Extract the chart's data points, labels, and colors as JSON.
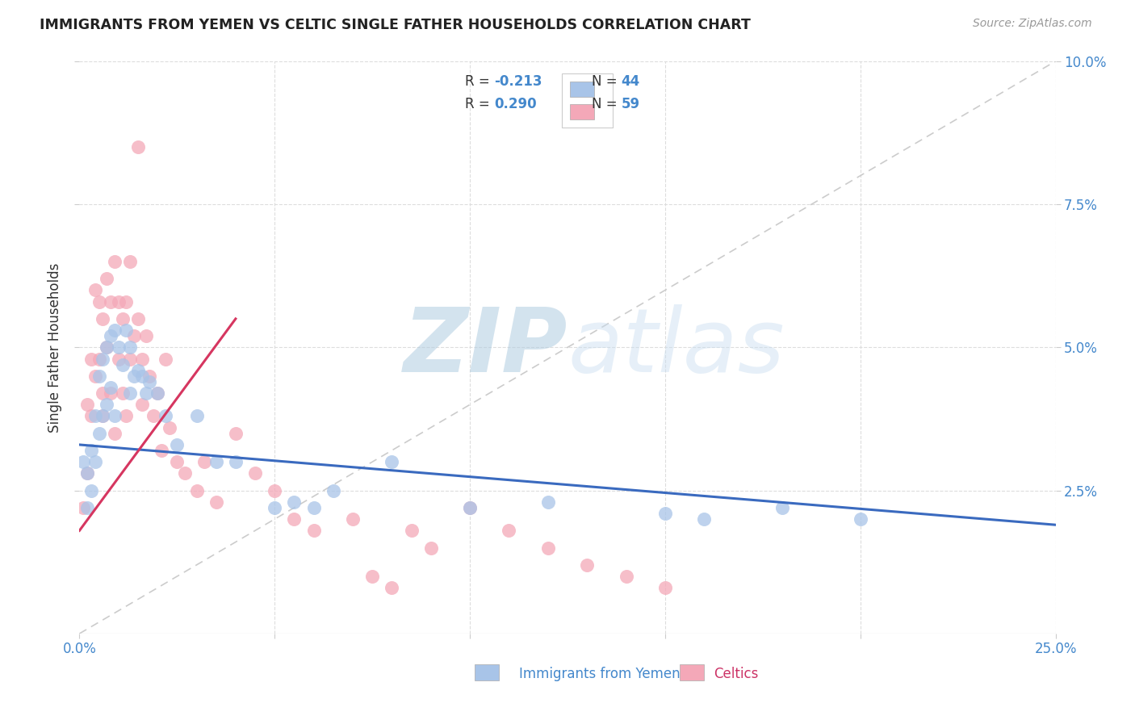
{
  "title": "IMMIGRANTS FROM YEMEN VS CELTIC SINGLE FATHER HOUSEHOLDS CORRELATION CHART",
  "source": "Source: ZipAtlas.com",
  "xlabel_blue": "Immigrants from Yemen",
  "xlabel_pink": "Celtics",
  "ylabel": "Single Father Households",
  "xlim": [
    0.0,
    0.25
  ],
  "ylim": [
    0.0,
    0.1
  ],
  "blue_color": "#a8c4e8",
  "pink_color": "#f4a8b8",
  "blue_line_color": "#3a6abf",
  "pink_line_color": "#d63660",
  "watermark_color": "#c5d8ec",
  "grid_color": "#dddddd",
  "title_color": "#222222",
  "label_color": "#333333",
  "tick_color": "#4488cc",
  "source_color": "#999999",
  "blue_x": [
    0.001,
    0.002,
    0.002,
    0.003,
    0.003,
    0.004,
    0.004,
    0.005,
    0.005,
    0.006,
    0.006,
    0.007,
    0.007,
    0.008,
    0.008,
    0.009,
    0.009,
    0.01,
    0.011,
    0.012,
    0.013,
    0.013,
    0.014,
    0.015,
    0.016,
    0.017,
    0.018,
    0.02,
    0.022,
    0.025,
    0.03,
    0.035,
    0.04,
    0.05,
    0.055,
    0.06,
    0.065,
    0.08,
    0.1,
    0.12,
    0.15,
    0.16,
    0.18,
    0.2
  ],
  "blue_y": [
    0.03,
    0.028,
    0.022,
    0.032,
    0.025,
    0.038,
    0.03,
    0.045,
    0.035,
    0.048,
    0.038,
    0.05,
    0.04,
    0.052,
    0.043,
    0.053,
    0.038,
    0.05,
    0.047,
    0.053,
    0.05,
    0.042,
    0.045,
    0.046,
    0.045,
    0.042,
    0.044,
    0.042,
    0.038,
    0.033,
    0.038,
    0.03,
    0.03,
    0.022,
    0.023,
    0.022,
    0.025,
    0.03,
    0.022,
    0.023,
    0.021,
    0.02,
    0.022,
    0.02
  ],
  "pink_x": [
    0.001,
    0.002,
    0.002,
    0.003,
    0.003,
    0.004,
    0.004,
    0.005,
    0.005,
    0.006,
    0.006,
    0.006,
    0.007,
    0.007,
    0.008,
    0.008,
    0.009,
    0.009,
    0.01,
    0.01,
    0.011,
    0.011,
    0.012,
    0.012,
    0.013,
    0.013,
    0.014,
    0.015,
    0.015,
    0.016,
    0.016,
    0.017,
    0.018,
    0.019,
    0.02,
    0.021,
    0.022,
    0.023,
    0.025,
    0.027,
    0.03,
    0.032,
    0.035,
    0.04,
    0.045,
    0.05,
    0.055,
    0.06,
    0.07,
    0.075,
    0.08,
    0.085,
    0.09,
    0.1,
    0.11,
    0.12,
    0.13,
    0.14,
    0.15
  ],
  "pink_y": [
    0.022,
    0.04,
    0.028,
    0.048,
    0.038,
    0.06,
    0.045,
    0.058,
    0.048,
    0.055,
    0.042,
    0.038,
    0.05,
    0.062,
    0.058,
    0.042,
    0.065,
    0.035,
    0.058,
    0.048,
    0.055,
    0.042,
    0.058,
    0.038,
    0.065,
    0.048,
    0.052,
    0.055,
    0.085,
    0.048,
    0.04,
    0.052,
    0.045,
    0.038,
    0.042,
    0.032,
    0.048,
    0.036,
    0.03,
    0.028,
    0.025,
    0.03,
    0.023,
    0.035,
    0.028,
    0.025,
    0.02,
    0.018,
    0.02,
    0.01,
    0.008,
    0.018,
    0.015,
    0.022,
    0.018,
    0.015,
    0.012,
    0.01,
    0.008
  ],
  "blue_line_x0": 0.0,
  "blue_line_x1": 0.25,
  "blue_line_y0": 0.033,
  "blue_line_y1": 0.019,
  "pink_line_x0": 0.0,
  "pink_line_x1": 0.04,
  "pink_line_y0": 0.018,
  "pink_line_y1": 0.055
}
